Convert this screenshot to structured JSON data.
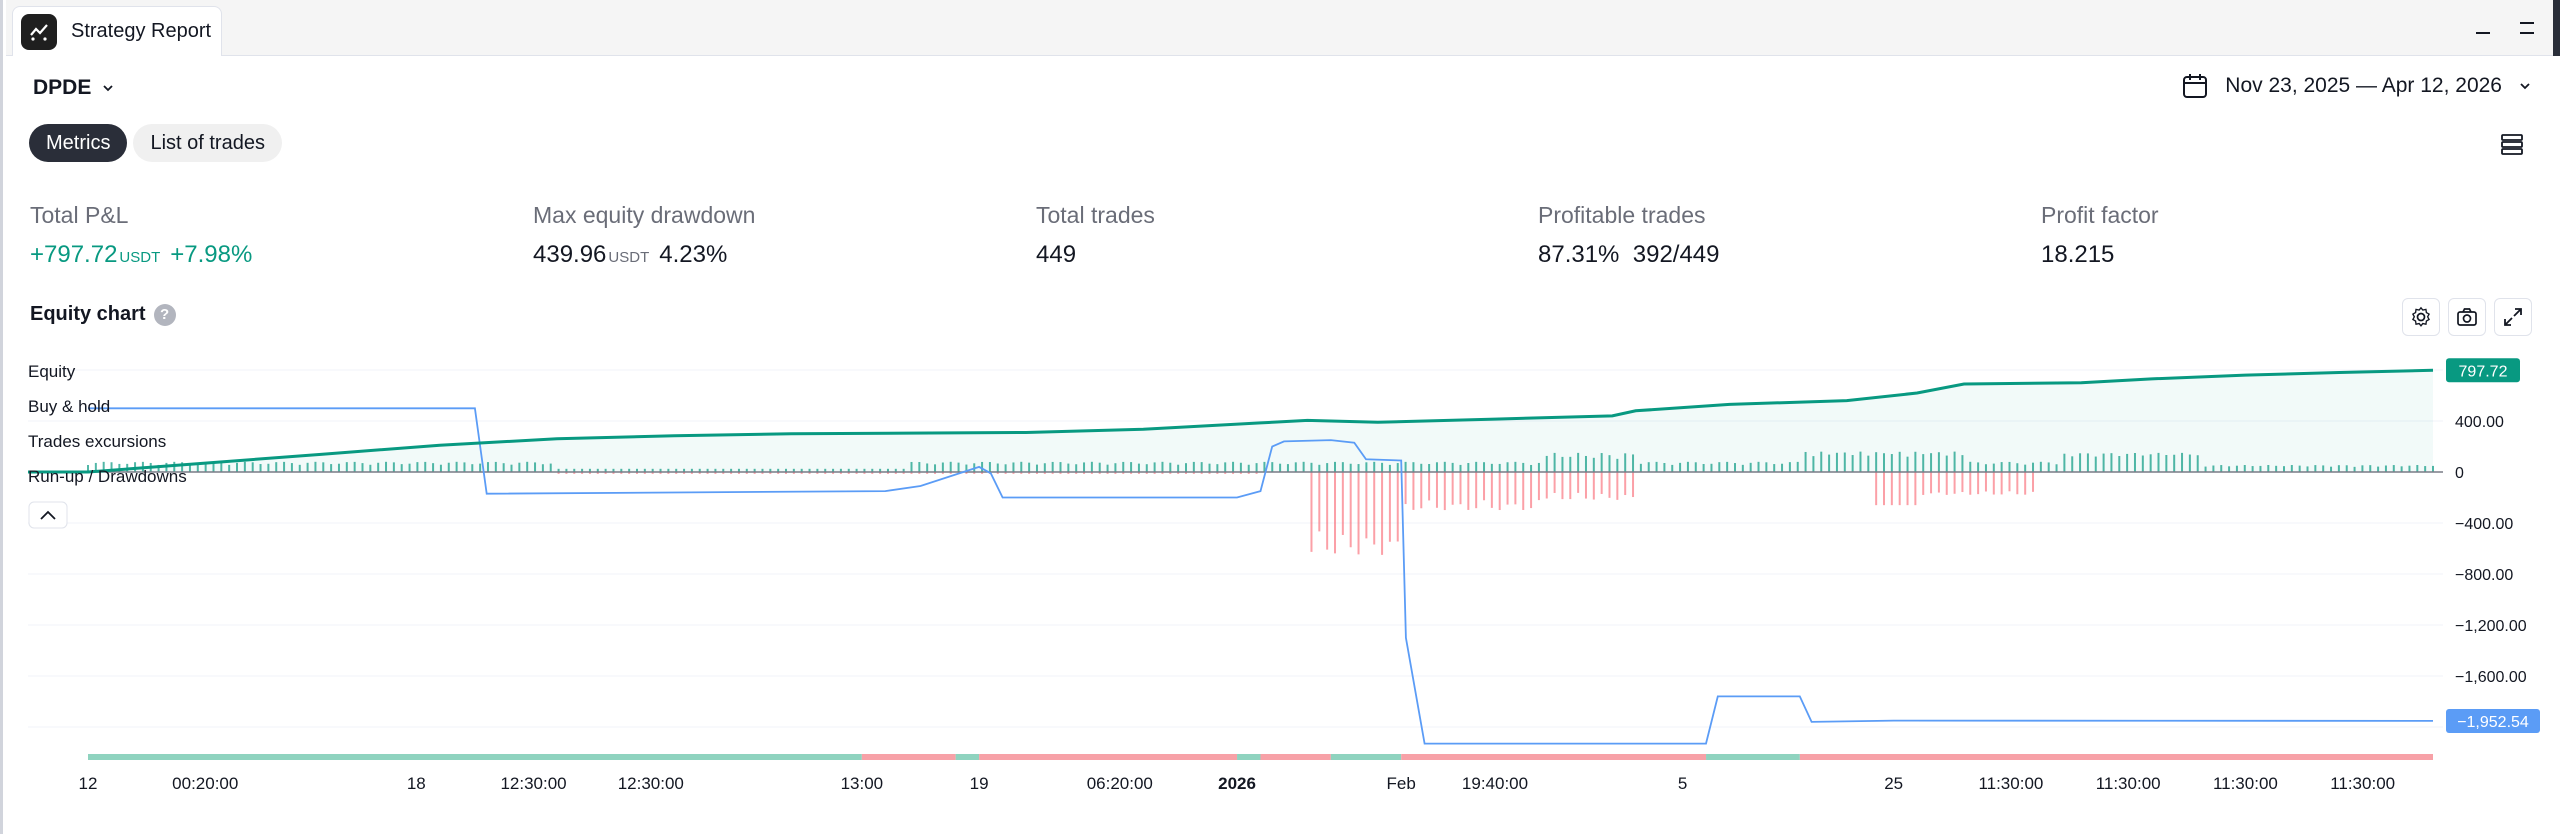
{
  "window": {
    "tab_title": "Strategy Report"
  },
  "header": {
    "symbol": "DPDE",
    "date_range": "Nov 23, 2025 — Apr 12, 2026"
  },
  "tabs": [
    {
      "label": "Metrics",
      "active": true
    },
    {
      "label": "List of trades",
      "active": false
    }
  ],
  "metrics": {
    "total_pnl": {
      "label": "Total P&L",
      "value": "+797.72",
      "unit": "USDT",
      "percent": "+7.98%"
    },
    "max_drawdown": {
      "label": "Max equity drawdown",
      "value": "439.96",
      "unit": "USDT",
      "percent": "4.23%"
    },
    "total_trades": {
      "label": "Total trades",
      "value": "449"
    },
    "profitable_trades": {
      "label": "Profitable trades",
      "percent": "87.31%",
      "ratio": "392/449"
    },
    "profit_factor": {
      "label": "Profit factor",
      "value": "18.215"
    }
  },
  "chart": {
    "title": "Equity chart",
    "help": "?",
    "legend": [
      "Equity",
      "Buy & hold",
      "Trades excursions",
      "Run-up / Drawdowns"
    ],
    "equity_badge": "797.72",
    "buyhold_badge": "−1,952.54",
    "colors": {
      "equity": "#089981",
      "buy_hold": "#5b9cf6",
      "runup": "#089981",
      "drawdown": "#f7525f"
    }
  },
  "chart_data": {
    "type": "line",
    "y_ticks": [
      "400.00",
      "0",
      "−400.00",
      "−800.00",
      "−1,200.00",
      "−1,600.00"
    ],
    "ylim": [
      -2100,
      900
    ],
    "x_ticks": [
      "12",
      "00:20:00",
      "18",
      "12:30:00",
      "12:30:00",
      "13:00",
      "19",
      "06:20:00",
      "2026",
      "Feb",
      "19:40:00",
      "5",
      "25",
      "11:30:00",
      "11:30:00",
      "11:30:00",
      "11:30:00"
    ],
    "series": [
      {
        "name": "Equity",
        "x": [
          0,
          0.05,
          0.1,
          0.15,
          0.2,
          0.25,
          0.3,
          0.35,
          0.4,
          0.45,
          0.5,
          0.52,
          0.55,
          0.6,
          0.65,
          0.66,
          0.7,
          0.75,
          0.78,
          0.8,
          0.85,
          0.88,
          0.92,
          0.96,
          1.0
        ],
        "values": [
          0,
          70,
          140,
          210,
          260,
          285,
          300,
          305,
          310,
          335,
          385,
          405,
          390,
          415,
          440,
          480,
          530,
          560,
          620,
          690,
          700,
          730,
          760,
          780,
          797.72
        ]
      },
      {
        "name": "Buy & hold",
        "x": [
          0,
          0.165,
          0.17,
          0.34,
          0.355,
          0.38,
          0.385,
          0.39,
          0.49,
          0.5,
          0.505,
          0.51,
          0.53,
          0.54,
          0.545,
          0.56,
          0.562,
          0.57,
          0.69,
          0.695,
          0.73,
          0.735,
          0.77,
          1.0
        ],
        "values": [
          500,
          500,
          -170,
          -150,
          -110,
          40,
          -10,
          -200,
          -200,
          -150,
          200,
          240,
          250,
          230,
          100,
          90,
          -1300,
          -2130,
          -2130,
          -1760,
          -1760,
          -1960,
          -1950,
          -1952.54
        ]
      }
    ]
  }
}
